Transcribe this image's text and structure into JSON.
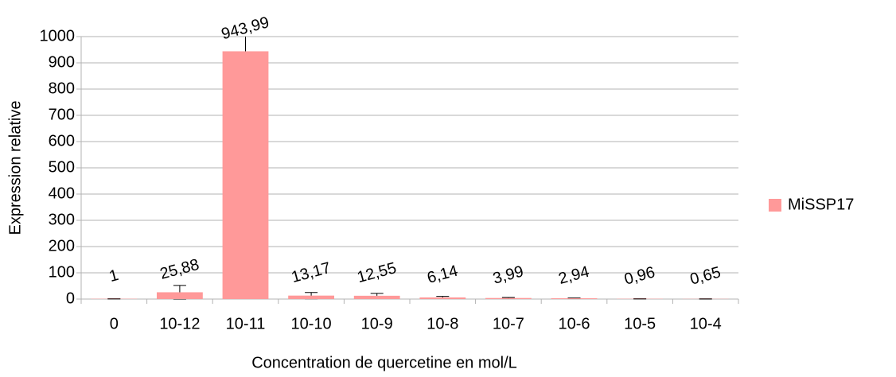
{
  "chart_data": {
    "type": "bar",
    "x_label": "Concentration de quercetine en mol/L",
    "y_label": "Expression relative",
    "categories": [
      "0",
      "10-12",
      "10-11",
      "10-10",
      "10-9",
      "10-8",
      "10-7",
      "10-6",
      "10-5",
      "10-4"
    ],
    "series": [
      {
        "name": "MiSSP17",
        "color": "#ff9999",
        "values": [
          1,
          25.88,
          943.99,
          13.17,
          12.55,
          6.14,
          3.99,
          2.94,
          0.96,
          0.65
        ],
        "value_labels": [
          "1",
          "25,88",
          "943,99",
          "13,17",
          "12,55",
          "6,14",
          "3,99",
          "2,94",
          "0,96",
          "0,65"
        ],
        "errors": [
          0.5,
          26,
          926,
          12,
          9,
          4,
          2,
          1,
          0.5,
          0.5
        ]
      }
    ],
    "ylim": [
      0,
      1000
    ],
    "yticks": [
      0,
      100,
      200,
      300,
      400,
      500,
      600,
      700,
      800,
      900,
      1000
    ],
    "grid": true,
    "legend": "right"
  }
}
